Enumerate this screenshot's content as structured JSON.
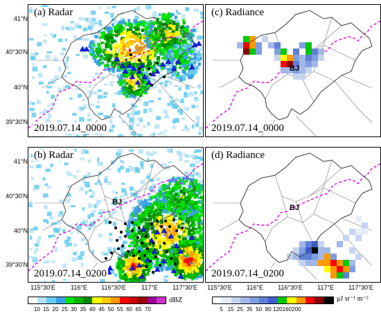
{
  "panels": [
    {
      "id": "a",
      "title": "(a) Radar",
      "date": "2019.07.14_0000"
    },
    {
      "id": "b",
      "title": "(b) Radar",
      "date": "2019.07.14_0200"
    },
    {
      "id": "c",
      "title": "(c) Radiance",
      "date": "2019.07.14_0000"
    },
    {
      "id": "d",
      "title": "(d) Radiance",
      "date": "2019.07.14_0200"
    }
  ],
  "city_label": "BJ",
  "lat_labels": [
    "41°N",
    "40°30'N",
    "40°N",
    "39°30'N"
  ],
  "lon_labels": [
    "115°30'E",
    "116°E",
    "116°30'E",
    "117°E",
    "117°30'E"
  ],
  "radar_colorbar": {
    "unit": "dBZ",
    "ticks": [
      "10",
      "15",
      "20",
      "25",
      "30",
      "35",
      "40",
      "45",
      "50",
      "55",
      "60",
      "65",
      "70"
    ],
    "colors": [
      "#ffffff",
      "#b9e3f5",
      "#66ccee",
      "#3aa0e6",
      "#00e400",
      "#00b400",
      "#008800",
      "#ffff00",
      "#ffcc00",
      "#ff9900",
      "#ff0000",
      "#cc0000",
      "#990000",
      "#990099",
      "#cc33cc"
    ]
  },
  "radiance_colorbar": {
    "unit": "μJ sr⁻¹ m⁻²",
    "ticks": [
      "5",
      "15",
      "25",
      "35",
      "50",
      "80",
      "120",
      "160",
      "200"
    ],
    "colors": [
      "#ffffff",
      "#e6ecf8",
      "#c6d4f0",
      "#a4b8e8",
      "#7f9ee0",
      "#5f7fd8",
      "#3f5fd0",
      "#00c800",
      "#ffff00",
      "#ff9900",
      "#ff0000",
      "#8b0000",
      "#000000"
    ]
  }
}
